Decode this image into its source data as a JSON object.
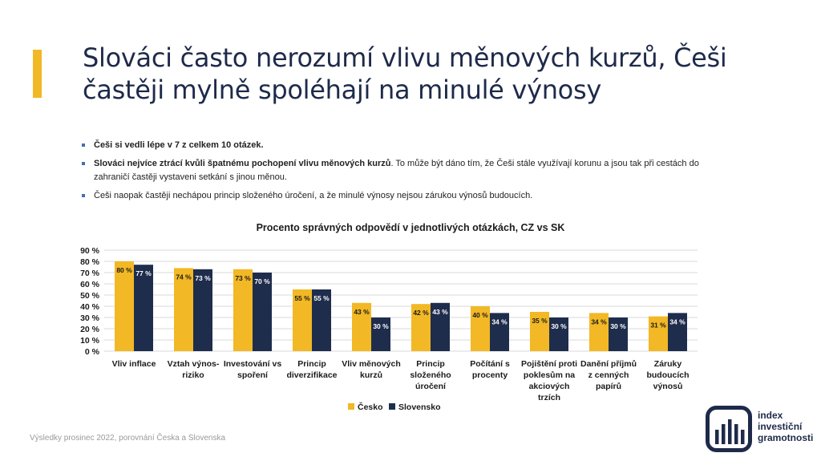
{
  "title": "Slováci často nerozumí vlivu měnových  kurzů, Češi častěji mylně spoléhají na minulé výnosy",
  "bullets": [
    {
      "bold": "Češi si vedli lépe v 7 z celkem 10 otázek.",
      "rest": ""
    },
    {
      "bold": "Slováci nejvíce ztrácí kvůli špatnému pochopení vlivu měnových kurzů",
      "rest": ". To může být dáno tím, že Češi stále využívají korunu a jsou tak při cestách do zahraničí častěji vystaveni setkání s jinou měnou."
    },
    {
      "bold": "",
      "rest": "Češi naopak častěji nechápou princip složeného úročení, a že minulé výnosy nejsou zárukou výnosů budoucích."
    }
  ],
  "footer": "Výsledky prosinec 2022, porovnání Česka a Slovenska",
  "logo": {
    "line1": "index",
    "line2": "investiční",
    "line3": "gramotnosti"
  },
  "colors": {
    "accent": "#f2b825",
    "cesko": "#f2b825",
    "slovensko": "#1f2d4d",
    "brand": "#1e2a4a"
  },
  "chart_data": {
    "type": "bar",
    "title": "Procento správných odpovědí v jednotlivých otázkách, CZ vs SK",
    "categories": [
      [
        "Vliv inflace"
      ],
      [
        "Vztah výnos-",
        "riziko"
      ],
      [
        "Investování vs",
        "spoření"
      ],
      [
        "Princip",
        "diverzifikace"
      ],
      [
        "Vliv měnových",
        "kurzů"
      ],
      [
        "Princip",
        "složeného",
        "úročení"
      ],
      [
        "Počítání s",
        "procenty"
      ],
      [
        "Pojištění proti",
        "poklesům na",
        "akciových",
        "trzích"
      ],
      [
        "Danění příjmů",
        "z cenných",
        "papírů"
      ],
      [
        "Záruky",
        "budoucích",
        "výnosů"
      ]
    ],
    "series": [
      {
        "name": "Česko",
        "values": [
          80,
          74,
          73,
          55,
          43,
          42,
          40,
          35,
          34,
          31
        ],
        "labels": [
          "80 %",
          "74 %",
          "73 %",
          "55 %",
          "43 %",
          "42 %",
          "40 %",
          "35 %",
          "34 %",
          "31 %"
        ]
      },
      {
        "name": "Slovensko",
        "values": [
          77,
          73,
          70,
          55,
          30,
          43,
          34,
          30,
          30,
          34
        ],
        "labels": [
          "77 %",
          "73 %",
          "70 %",
          "55 %",
          "30 %",
          "43 %",
          "34 %",
          "30 %",
          "30 %",
          "34 %"
        ]
      }
    ],
    "yticks": [
      "0 %",
      "10 %",
      "20 %",
      "30 %",
      "40 %",
      "50 %",
      "60 %",
      "70 %",
      "80 %",
      "90 %"
    ],
    "ylim": [
      0,
      90
    ],
    "grid": true,
    "legend": "bottom"
  }
}
